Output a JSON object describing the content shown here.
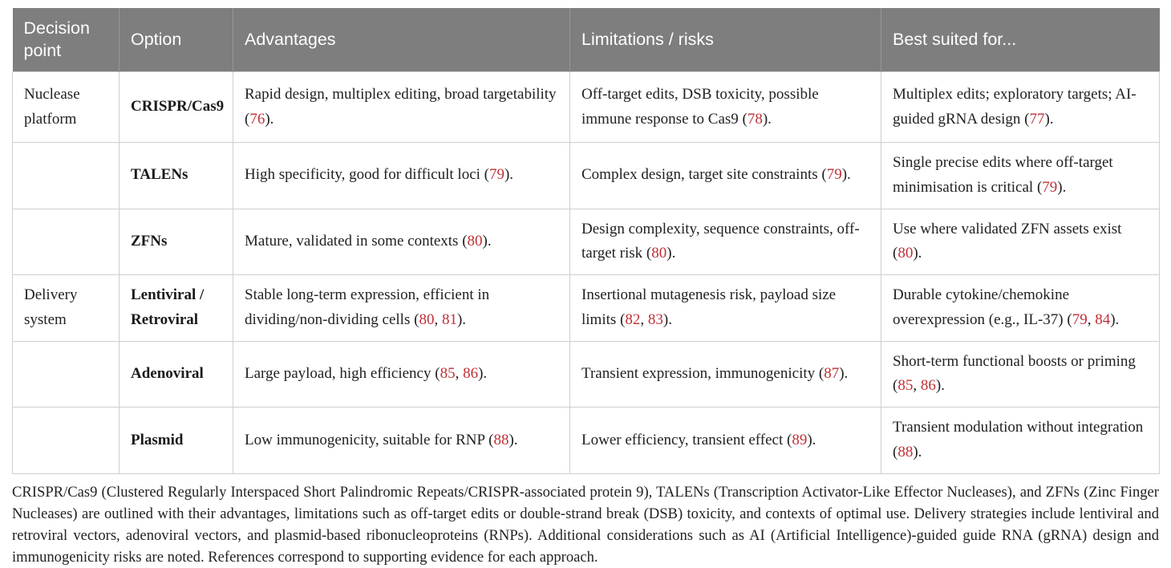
{
  "colors": {
    "header_bg": "#7e7e7e",
    "header_text": "#ffffff",
    "reference_red": "#bf3036",
    "cell_border": "#cfcfcf",
    "body_text": "#212121"
  },
  "table": {
    "columns": [
      {
        "label": "Decision point"
      },
      {
        "label": "Option"
      },
      {
        "label": "Advantages"
      },
      {
        "label": "Limitations / risks"
      },
      {
        "label": "Best suited for..."
      }
    ],
    "rows": [
      {
        "decision_point": "Nuclease platform",
        "option": "CRISPR/Cas9",
        "advantages": [
          {
            "t": "Rapid design, multiplex editing, broad targetability ("
          },
          {
            "t": "76",
            "ref": true
          },
          {
            "t": ")."
          }
        ],
        "limitations": [
          {
            "t": "Off-target edits, DSB toxicity, possible immune response to Cas9 ("
          },
          {
            "t": "78",
            "ref": true
          },
          {
            "t": ")."
          }
        ],
        "best_for": [
          {
            "t": "Multiplex edits; exploratory targets; AI-guided gRNA design ("
          },
          {
            "t": "77",
            "ref": true
          },
          {
            "t": ")."
          }
        ]
      },
      {
        "decision_point": "",
        "option": "TALENs",
        "advantages": [
          {
            "t": "High specificity, good for difficult loci ("
          },
          {
            "t": "79",
            "ref": true
          },
          {
            "t": ")."
          }
        ],
        "limitations": [
          {
            "t": "Complex design, target site constraints ("
          },
          {
            "t": "79",
            "ref": true
          },
          {
            "t": ")."
          }
        ],
        "best_for": [
          {
            "t": "Single precise edits where off-target minimisation is critical ("
          },
          {
            "t": "79",
            "ref": true
          },
          {
            "t": ")."
          }
        ]
      },
      {
        "decision_point": "",
        "option": "ZFNs",
        "advantages": [
          {
            "t": "Mature, validated in some contexts ("
          },
          {
            "t": "80",
            "ref": true
          },
          {
            "t": ")."
          }
        ],
        "limitations": [
          {
            "t": "Design complexity, sequence constraints, off-target risk ("
          },
          {
            "t": "80",
            "ref": true
          },
          {
            "t": ")."
          }
        ],
        "best_for": [
          {
            "t": "Use where validated ZFN assets exist ("
          },
          {
            "t": "80",
            "ref": true
          },
          {
            "t": ")."
          }
        ]
      },
      {
        "decision_point": "Delivery system",
        "option": "Lentiviral / Retroviral",
        "advantages": [
          {
            "t": "Stable long-term expression, efficient in dividing/non-dividing cells ("
          },
          {
            "t": "80",
            "ref": true
          },
          {
            "t": ", "
          },
          {
            "t": "81",
            "ref": true
          },
          {
            "t": ")."
          }
        ],
        "limitations": [
          {
            "t": "Insertional mutagenesis risk, payload size limits ("
          },
          {
            "t": "82",
            "ref": true
          },
          {
            "t": ", "
          },
          {
            "t": "83",
            "ref": true
          },
          {
            "t": ")."
          }
        ],
        "best_for": [
          {
            "t": "Durable cytokine/chemokine overexpression (e.g., IL-37) ("
          },
          {
            "t": "79",
            "ref": true
          },
          {
            "t": ", "
          },
          {
            "t": "84",
            "ref": true
          },
          {
            "t": ")."
          }
        ]
      },
      {
        "decision_point": "",
        "option": "Adenoviral",
        "advantages": [
          {
            "t": "Large payload, high efficiency ("
          },
          {
            "t": "85",
            "ref": true
          },
          {
            "t": ", "
          },
          {
            "t": "86",
            "ref": true
          },
          {
            "t": ")."
          }
        ],
        "limitations": [
          {
            "t": "Transient expression, immunogenicity ("
          },
          {
            "t": "87",
            "ref": true
          },
          {
            "t": ")."
          }
        ],
        "best_for": [
          {
            "t": "Short-term functional boosts or priming ("
          },
          {
            "t": "85",
            "ref": true
          },
          {
            "t": ", "
          },
          {
            "t": "86",
            "ref": true
          },
          {
            "t": ")."
          }
        ]
      },
      {
        "decision_point": "",
        "option": "Plasmid",
        "advantages": [
          {
            "t": "Low immunogenicity, suitable for RNP ("
          },
          {
            "t": "88",
            "ref": true
          },
          {
            "t": ")."
          }
        ],
        "limitations": [
          {
            "t": "Lower efficiency, transient effect ("
          },
          {
            "t": "89",
            "ref": true
          },
          {
            "t": ")."
          }
        ],
        "best_for": [
          {
            "t": "Transient modulation without integration ("
          },
          {
            "t": "88",
            "ref": true
          },
          {
            "t": ")."
          }
        ]
      }
    ]
  },
  "footnote": "CRISPR/Cas9 (Clustered Regularly Interspaced Short Palindromic Repeats/CRISPR-associated protein 9), TALENs (Transcription Activator-Like Effector Nucleases), and ZFNs (Zinc Finger Nucleases) are outlined with their advantages, limitations such as off-target edits or double-strand break (DSB) toxicity, and contexts of optimal use. Delivery strategies include lentiviral and retroviral vectors, adenoviral vectors, and plasmid-based ribonucleoproteins (RNPs). Additional considerations such as AI (Artificial Intelligence)-guided guide RNA (gRNA) design and immunogenicity risks are noted. References correspond to supporting evidence for each approach."
}
